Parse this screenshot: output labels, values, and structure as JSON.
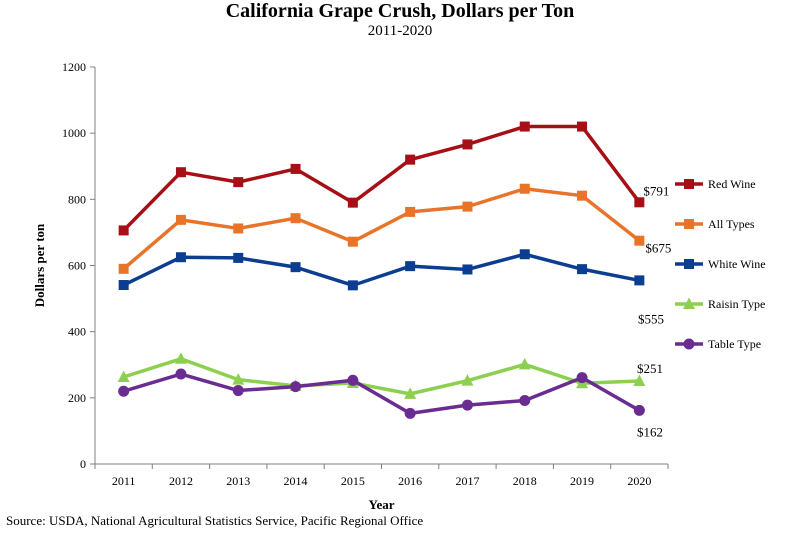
{
  "chart_data": {
    "type": "line",
    "title": "California Grape Crush, Dollars per Ton",
    "subtitle": "2011-2020",
    "xlabel": "Year",
    "ylabel": "Dollars per ton",
    "categories": [
      "2011",
      "2012",
      "2013",
      "2014",
      "2015",
      "2016",
      "2017",
      "2018",
      "2019",
      "2020"
    ],
    "ylim": [
      0,
      1200
    ],
    "yticks": [
      0,
      200,
      400,
      600,
      800,
      1000,
      1200
    ],
    "grid": false,
    "legend_position": "right",
    "series": [
      {
        "name": "Red Wine",
        "color": "#a50f15",
        "marker": "square",
        "values": [
          706,
          882,
          852,
          892,
          790,
          920,
          966,
          1020,
          1020,
          791
        ]
      },
      {
        "name": "All Types",
        "color": "#e8742a",
        "marker": "square",
        "values": [
          590,
          738,
          712,
          743,
          672,
          762,
          778,
          832,
          811,
          675
        ]
      },
      {
        "name": "White Wine",
        "color": "#0b3d91",
        "marker": "square",
        "values": [
          541,
          625,
          623,
          595,
          540,
          598,
          588,
          634,
          589,
          555
        ]
      },
      {
        "name": "Raisin Type",
        "color": "#8dd04f",
        "marker": "triangle",
        "values": [
          263,
          318,
          255,
          236,
          245,
          212,
          252,
          301,
          244,
          251
        ]
      },
      {
        "name": "Table Type",
        "color": "#6a2c91",
        "marker": "circle",
        "values": [
          220,
          272,
          222,
          234,
          253,
          153,
          178,
          192,
          261,
          162
        ]
      }
    ],
    "annotations": [
      {
        "text": "$791",
        "series": "Red Wine"
      },
      {
        "text": "$675",
        "series": "All Types"
      },
      {
        "text": "$555",
        "series": "White Wine"
      },
      {
        "text": "$251",
        "series": "Raisin Type"
      },
      {
        "text": "$162",
        "series": "Table Type"
      }
    ]
  },
  "source": "Source: USDA, National Agricultural Statistics Service, Pacific Regional Office"
}
